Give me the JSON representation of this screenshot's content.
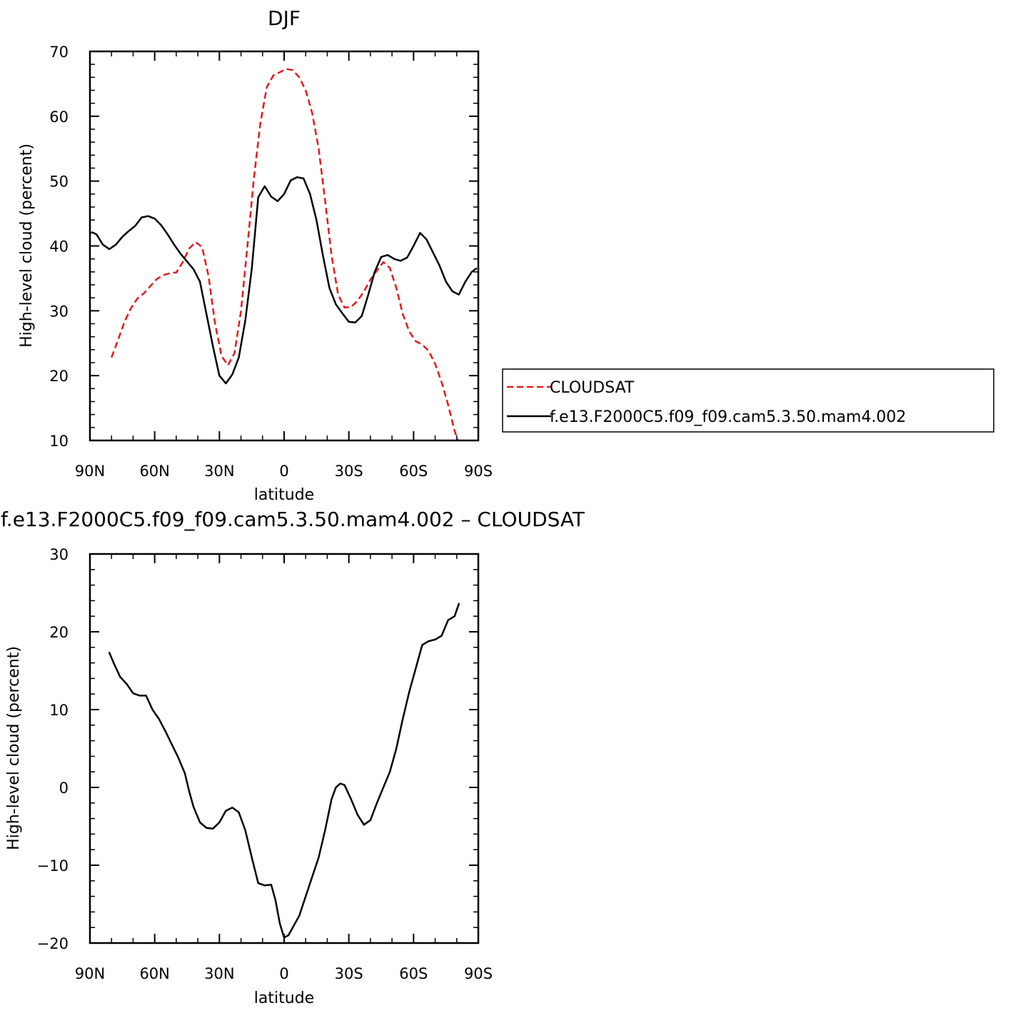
{
  "chart_data": [
    {
      "type": "line",
      "title": "DJF",
      "xlabel": "latitude",
      "ylabel": "High-level cloud (percent)",
      "xlim": [
        -90,
        90
      ],
      "ylim": [
        10,
        70
      ],
      "xticks": [
        -90,
        -60,
        -30,
        0,
        30,
        60,
        90
      ],
      "xtick_labels": [
        "90N",
        "60N",
        "30N",
        "0",
        "30S",
        "60S",
        "90S"
      ],
      "yticks": [
        10,
        20,
        30,
        40,
        50,
        60,
        70
      ],
      "ytick_labels": [
        "10",
        "20",
        "30",
        "40",
        "50",
        "60",
        "70"
      ],
      "legend_position": "right",
      "series": [
        {
          "name": "CLOUDSAT",
          "color": "#e41a1c",
          "dash": "dashed",
          "x": [
            -80,
            -77,
            -74,
            -71,
            -68,
            -65,
            -62,
            -59,
            -56,
            -53,
            -50,
            -47,
            -44,
            -41,
            -38,
            -35,
            -32,
            -29,
            -26,
            -23,
            -20,
            -17,
            -14,
            -11,
            -8,
            -5,
            -2,
            1,
            4,
            7,
            10,
            13,
            16,
            19,
            22,
            25,
            28,
            31,
            34,
            37,
            40,
            43,
            46,
            49,
            52,
            55,
            58,
            61,
            64,
            67,
            70,
            73,
            76,
            79,
            81
          ],
          "y": [
            22.8,
            25.5,
            28.3,
            30.4,
            31.9,
            32.7,
            33.8,
            34.9,
            35.5,
            35.8,
            35.9,
            37.5,
            39.6,
            40.6,
            39.8,
            35.3,
            28.0,
            23.0,
            21.6,
            23.5,
            30.0,
            40.0,
            50.5,
            59.0,
            64.5,
            66.3,
            66.8,
            67.3,
            67.1,
            66.0,
            64.0,
            60.5,
            55.0,
            47.0,
            38.5,
            32.5,
            30.5,
            30.6,
            31.5,
            33.0,
            34.8,
            36.2,
            37.5,
            36.6,
            33.5,
            29.5,
            26.8,
            25.3,
            24.8,
            23.8,
            21.8,
            19.0,
            15.5,
            11.5,
            9.5
          ]
        },
        {
          "name": "f.e13.F2000C5.f09_f09.cam5.3.50.mam4.002",
          "color": "#000000",
          "dash": "solid",
          "x": [
            -89,
            -87,
            -84,
            -81,
            -78,
            -75,
            -72,
            -69,
            -66,
            -63,
            -60,
            -57,
            -54,
            -51,
            -48,
            -45,
            -42,
            -39,
            -36,
            -33,
            -30,
            -27,
            -24,
            -21,
            -18,
            -15,
            -12,
            -9,
            -6,
            -3,
            0,
            3,
            6,
            9,
            12,
            15,
            18,
            21,
            24,
            27,
            30,
            33,
            36,
            39,
            42,
            45,
            48,
            51,
            54,
            57,
            60,
            63,
            66,
            69,
            72,
            75,
            78,
            81,
            84,
            87,
            89
          ],
          "y": [
            42.1,
            41.8,
            40.2,
            39.5,
            40.2,
            41.4,
            42.3,
            43.1,
            44.4,
            44.6,
            44.2,
            43.2,
            41.8,
            40.2,
            38.8,
            37.6,
            36.4,
            34.5,
            29.5,
            24.5,
            20.0,
            18.8,
            20.2,
            22.8,
            28.5,
            36.5,
            47.5,
            49.2,
            47.6,
            46.9,
            48.0,
            50.1,
            50.6,
            50.4,
            48.0,
            44.0,
            38.5,
            33.5,
            31.0,
            29.6,
            28.3,
            28.2,
            29.2,
            32.5,
            36.0,
            38.3,
            38.6,
            38.0,
            37.7,
            38.2,
            40.0,
            42.0,
            41.0,
            39.0,
            37.0,
            34.5,
            33.0,
            32.5,
            34.5,
            36.0,
            36.5
          ]
        }
      ]
    },
    {
      "type": "line",
      "title": "f.e13.F2000C5.f09_f09.cam5.3.50.mam4.002 – CLOUDSAT",
      "xlabel": "latitude",
      "ylabel": "High-level cloud (percent)",
      "xlim": [
        -90,
        90
      ],
      "ylim": [
        -20,
        30
      ],
      "xticks": [
        -90,
        -60,
        -30,
        0,
        30,
        60,
        90
      ],
      "xtick_labels": [
        "90N",
        "60N",
        "30N",
        "0",
        "30S",
        "60S",
        "90S"
      ],
      "yticks": [
        -20,
        -10,
        0,
        10,
        20,
        30
      ],
      "ytick_labels": [
        "−20",
        "−10",
        "0",
        "10",
        "20",
        "30"
      ],
      "series": [
        {
          "color": "#000000",
          "dash": "solid",
          "x": [
            -81,
            -79,
            -76,
            -73,
            -70,
            -67,
            -64,
            -61,
            -58,
            -55,
            -52,
            -49,
            -46,
            -44,
            -42,
            -39,
            -36,
            -33,
            -30,
            -27,
            -24,
            -21,
            -18,
            -15,
            -12,
            -9,
            -6,
            -4,
            -2,
            0,
            2,
            4,
            7,
            10,
            13,
            16,
            19,
            22,
            24,
            26,
            28,
            31,
            34,
            37,
            40,
            43,
            46,
            49,
            52,
            55,
            58,
            61,
            64,
            67,
            70,
            73,
            76,
            79,
            81
          ],
          "y": [
            17.3,
            16.0,
            14.2,
            13.3,
            12.1,
            11.8,
            11.8,
            10.0,
            8.8,
            7.2,
            5.5,
            3.8,
            1.8,
            -0.5,
            -2.5,
            -4.5,
            -5.2,
            -5.3,
            -4.5,
            -3.0,
            -2.6,
            -3.2,
            -5.5,
            -9.0,
            -12.3,
            -12.6,
            -12.5,
            -14.5,
            -17.5,
            -19.3,
            -19.0,
            -18.0,
            -16.5,
            -14.0,
            -11.5,
            -9.0,
            -5.5,
            -1.5,
            0.0,
            0.5,
            0.3,
            -1.5,
            -3.5,
            -4.8,
            -4.2,
            -2.0,
            0.0,
            2.0,
            5.0,
            8.8,
            12.3,
            15.3,
            18.3,
            18.8,
            19.0,
            19.5,
            21.5,
            22.0,
            23.6
          ]
        }
      ]
    }
  ],
  "legend_entries": [
    {
      "label": "CLOUDSAT",
      "color": "#e41a1c",
      "dash": "dashed"
    },
    {
      "label": "f.e13.F2000C5.f09_f09.cam5.3.50.mam4.002",
      "color": "#000000",
      "dash": "solid"
    }
  ]
}
